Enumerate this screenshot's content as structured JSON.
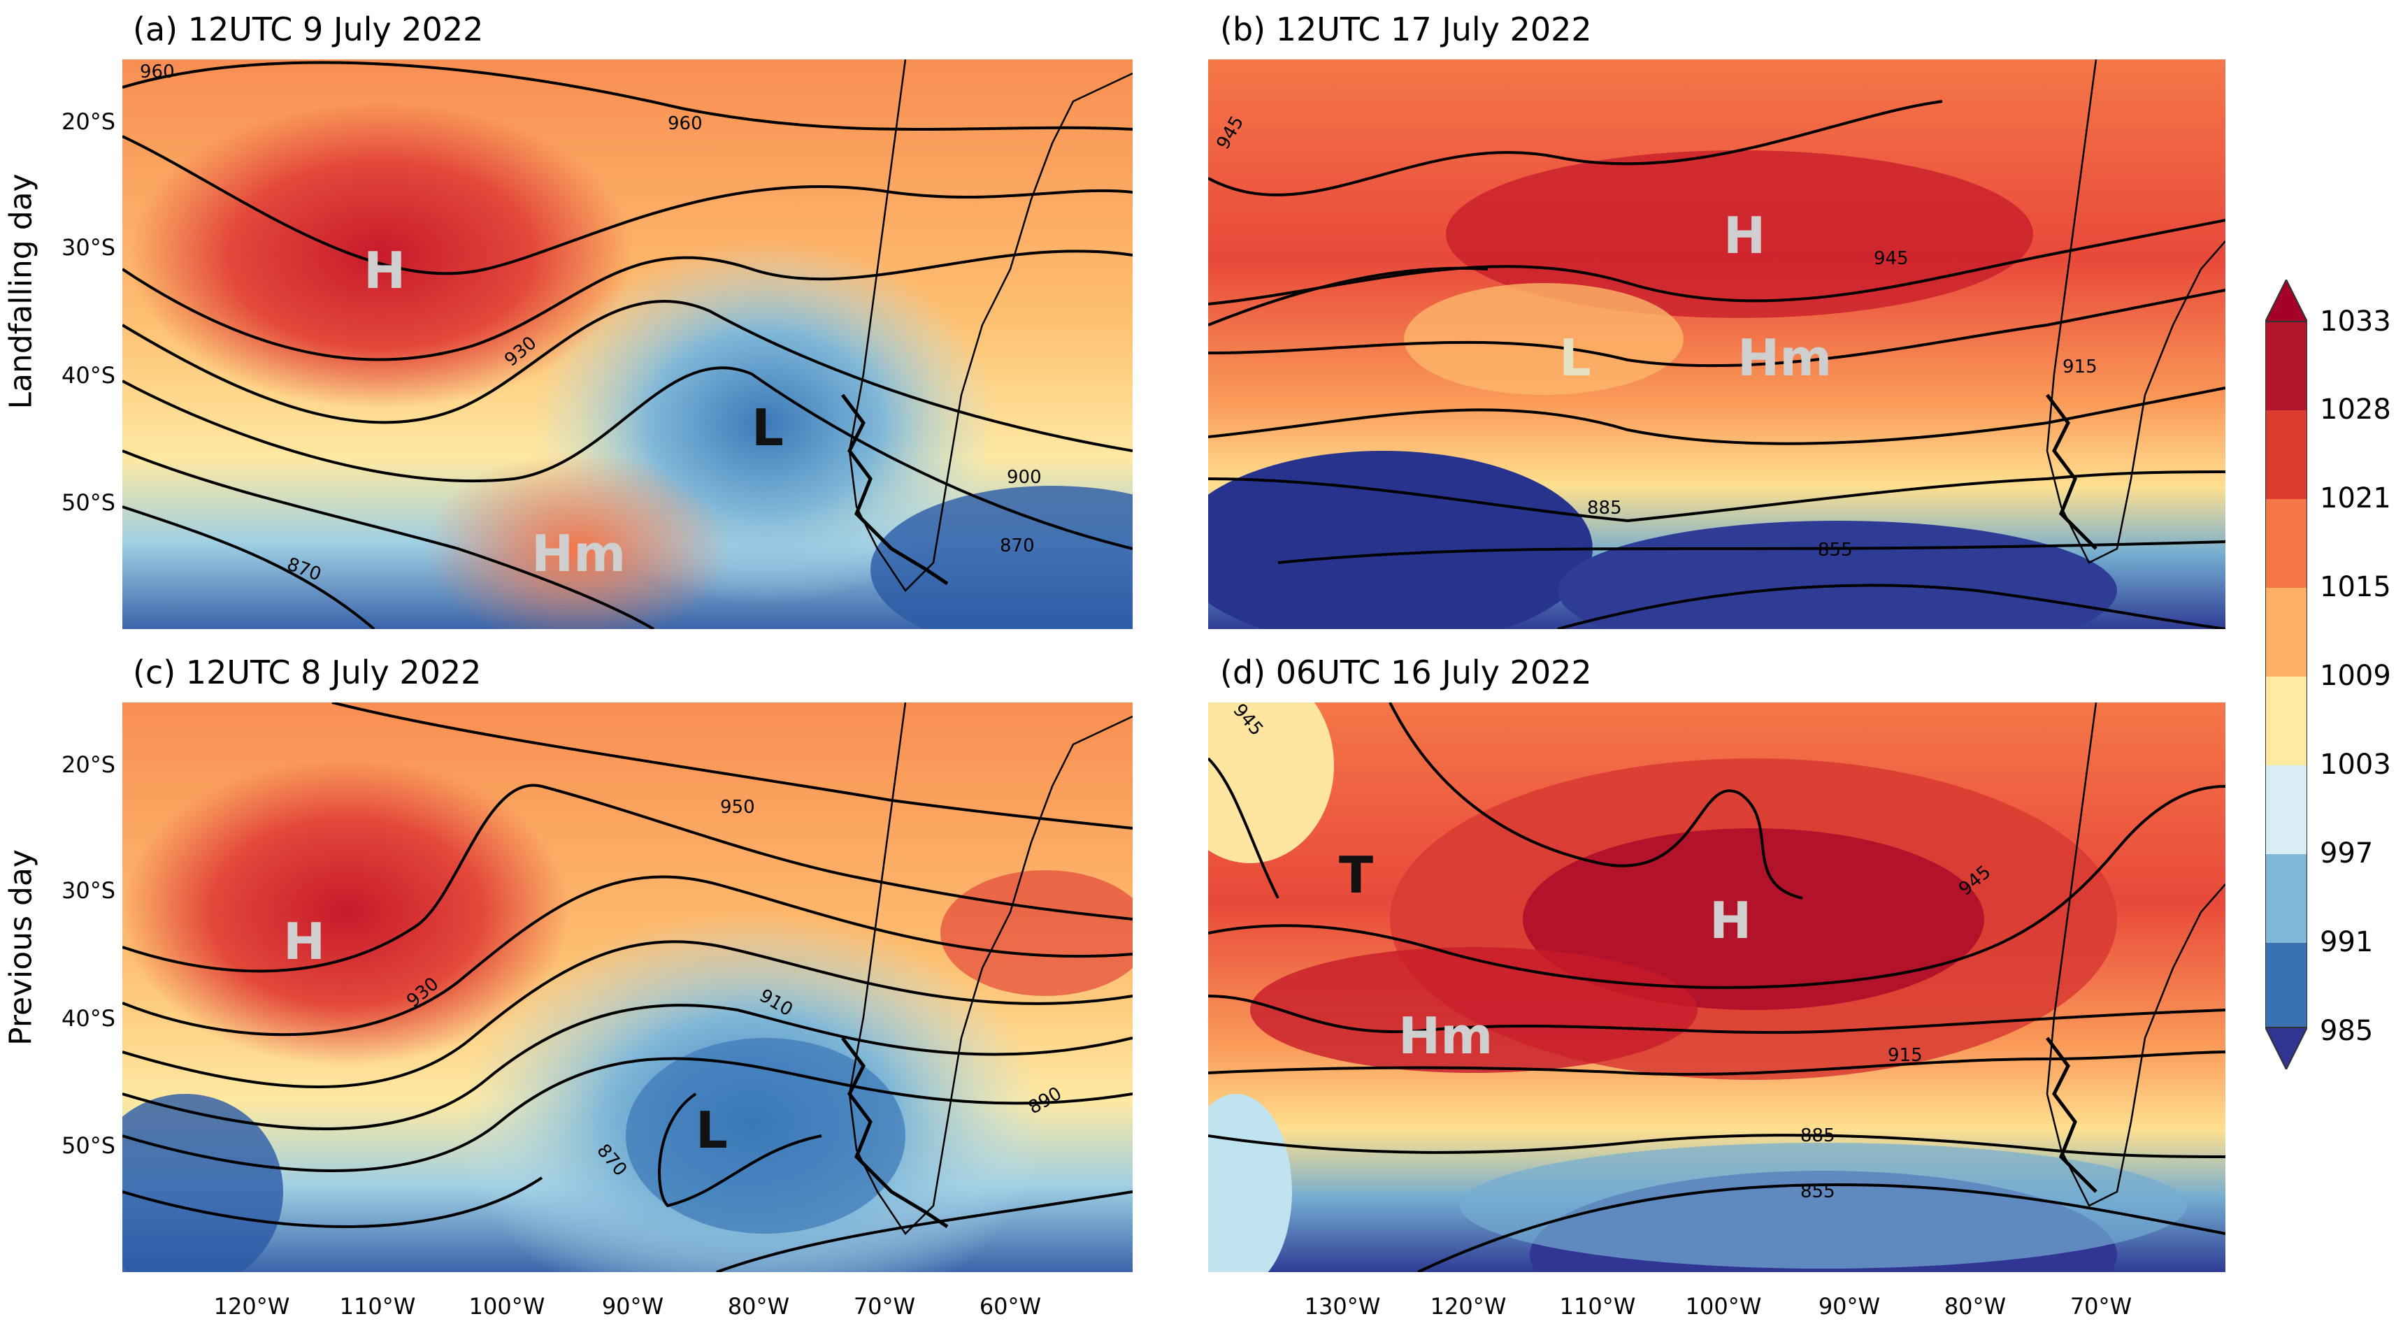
{
  "rows": [
    {
      "label": "Landfalling day"
    },
    {
      "label": "Previous day"
    }
  ],
  "panels": [
    {
      "title": "(a) 12UTC 9 July 2022",
      "contour_labels": [
        "960",
        "960",
        "930",
        "900",
        "870",
        "870"
      ],
      "centers": [
        "H",
        "L",
        "Hm"
      ]
    },
    {
      "title": "(b) 12UTC 17 July 2022",
      "contour_labels": [
        "945",
        "945",
        "915",
        "885",
        "855"
      ],
      "centers": [
        "H",
        "L",
        "Hm"
      ]
    },
    {
      "title": "(c) 12UTC 8 July 2022",
      "contour_labels": [
        "950",
        "930",
        "910",
        "890",
        "870"
      ],
      "centers": [
        "H",
        "L"
      ]
    },
    {
      "title": "(d) 06UTC 16 July 2022",
      "contour_labels": [
        "945",
        "945",
        "915",
        "885",
        "855"
      ],
      "centers": [
        "T",
        "H",
        "Hm"
      ]
    }
  ],
  "latitude_labels": [
    "20°S",
    "30°S",
    "40°S",
    "50°S"
  ],
  "longitude_labels_left": [
    "120°W",
    "110°W",
    "100°W",
    "90°W",
    "80°W",
    "70°W",
    "60°W"
  ],
  "longitude_labels_right": [
    "130°W",
    "120°W",
    "110°W",
    "100°W",
    "90°W",
    "80°W",
    "70°W"
  ],
  "colorbar": {
    "ticks": [
      "1033",
      "1028",
      "1021",
      "1015",
      "1009",
      "1003",
      "997",
      "991",
      "985"
    ],
    "colors": [
      "#a50026",
      "#d73027",
      "#f46d43",
      "#fdae61",
      "#fee090",
      "#ffffbf",
      "#e0f3f8",
      "#abd9e9",
      "#74add1",
      "#4575b4",
      "#313695"
    ]
  }
}
